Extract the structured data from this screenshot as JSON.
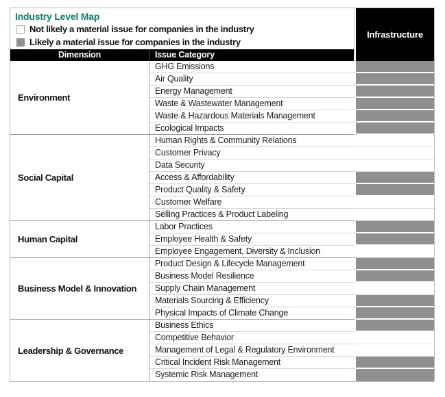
{
  "title": "Industry Level Map",
  "legend": [
    {
      "label": "Not likely a material issue for companies in the industry",
      "type": "not_material"
    },
    {
      "label": "Likely a material issue for companies in the industry",
      "type": "material"
    }
  ],
  "columns": {
    "dimension": "Dimension",
    "issue_category": "Issue Category",
    "industry": "Infrastructure"
  },
  "colors": {
    "accent_green": "#0f8066",
    "material_gray": "#8f8f8f",
    "not_material_white": "#ffffff",
    "header_black": "#000000"
  },
  "sections": [
    {
      "dimension": "Environment",
      "rows": [
        {
          "issue": "GHG Emissions",
          "material": true
        },
        {
          "issue": "Air Quality",
          "material": true
        },
        {
          "issue": "Energy Management",
          "material": true
        },
        {
          "issue": "Waste & Wastewater Management",
          "material": true
        },
        {
          "issue": "Waste & Hazardous Materials Management",
          "material": true
        },
        {
          "issue": "Ecological Impacts",
          "material": true
        }
      ]
    },
    {
      "dimension": "Social Capital",
      "rows": [
        {
          "issue": "Human Rights & Community Relations",
          "material": false
        },
        {
          "issue": "Customer Privacy",
          "material": false
        },
        {
          "issue": "Data Security",
          "material": false
        },
        {
          "issue": "Access & Affordability",
          "material": true
        },
        {
          "issue": "Product Quality & Safety",
          "material": true
        },
        {
          "issue": "Customer Welfare",
          "material": false
        },
        {
          "issue": "Selling Practices & Product Labeling",
          "material": false
        }
      ]
    },
    {
      "dimension": "Human Capital",
      "rows": [
        {
          "issue": "Labor Practices",
          "material": true
        },
        {
          "issue": "Employee Health & Safety",
          "material": true
        },
        {
          "issue": "Employee Engagement, Diversity & Inclusion",
          "material": false
        }
      ]
    },
    {
      "dimension": "Business Model & Innovation",
      "rows": [
        {
          "issue": "Product Design & Lifecycle Management",
          "material": true
        },
        {
          "issue": "Business Model Resilience",
          "material": true
        },
        {
          "issue": "Supply Chain Management",
          "material": false
        },
        {
          "issue": "Materials Sourcing & Efficiency",
          "material": true
        },
        {
          "issue": "Physical Impacts of Climate Change",
          "material": true
        }
      ]
    },
    {
      "dimension": "Leadership & Governance",
      "rows": [
        {
          "issue": "Business Ethics",
          "material": true
        },
        {
          "issue": "Competitive Behavior",
          "material": false
        },
        {
          "issue": "Management of Legal & Regulatory Environment",
          "material": false
        },
        {
          "issue": "Critical Incident Risk Management",
          "material": true
        },
        {
          "issue": "Systemic Risk Management",
          "material": true
        }
      ]
    }
  ]
}
